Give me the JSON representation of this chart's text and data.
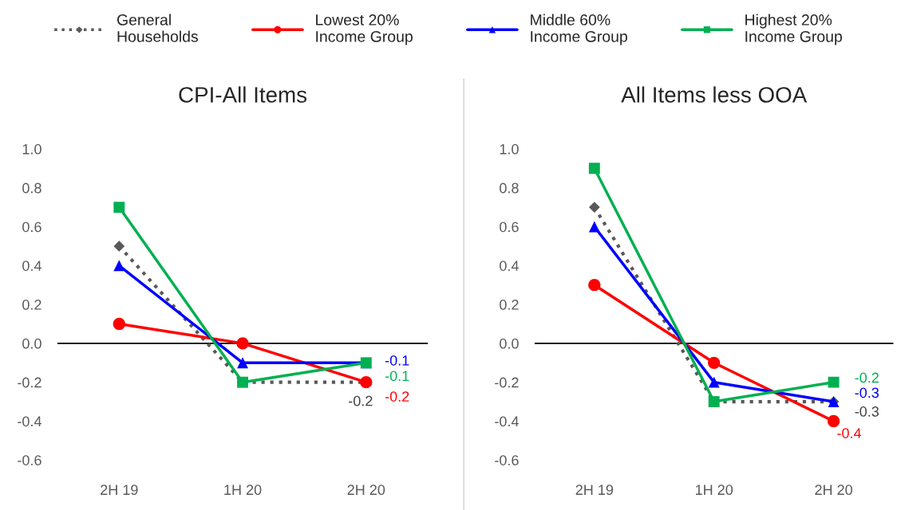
{
  "chart_data": [
    {
      "type": "line",
      "title": "CPI-All Items",
      "categories": [
        "2H 19",
        "1H 20",
        "2H 20"
      ],
      "ylim": [
        -0.6,
        1
      ],
      "yticks": [
        {
          "value": -0.6,
          "label": "-0.6"
        },
        {
          "value": -0.4,
          "label": "-0.4"
        },
        {
          "value": -0.2,
          "label": "-0.2"
        },
        {
          "value": 0,
          "label": "0.0"
        },
        {
          "value": 0.2,
          "label": "0.2"
        },
        {
          "value": 0.4,
          "label": "0.4"
        },
        {
          "value": 0.6,
          "label": "0.6"
        },
        {
          "value": 0.8,
          "label": "0.8"
        },
        {
          "value": 1,
          "label": "1.0"
        }
      ],
      "grid": false,
      "legend": "top",
      "ref_lines": [
        {
          "axis": "y",
          "value": 0,
          "color": "#000000"
        }
      ],
      "series": [
        {
          "name": "General\nHouseholds",
          "color": "#595959",
          "marker": "diamond",
          "line_style": "dotted",
          "values": [
            0.5,
            -0.2,
            -0.2
          ],
          "value_labels": [
            null,
            null,
            "-0.2"
          ]
        },
        {
          "name": "Lowest 20%\nIncome Group",
          "color": "#ff0000",
          "marker": "circle",
          "line_style": "solid",
          "values": [
            0.1,
            0,
            -0.2
          ],
          "value_labels": [
            null,
            null,
            "-0.2"
          ]
        },
        {
          "name": "Middle 60%\nIncome Group",
          "color": "#0000ff",
          "marker": "triangle",
          "line_style": "solid",
          "values": [
            0.4,
            -0.1,
            -0.1
          ],
          "value_labels": [
            null,
            null,
            "-0.1"
          ]
        },
        {
          "name": "Highest 20%\nIncome Group",
          "color": "#00b050",
          "marker": "square",
          "line_style": "solid",
          "values": [
            0.7,
            -0.2,
            -0.1
          ],
          "value_labels": [
            null,
            null,
            "-0.1"
          ]
        }
      ]
    },
    {
      "type": "line",
      "title": "All Items less OOA",
      "categories": [
        "2H 19",
        "1H 20",
        "2H 20"
      ],
      "ylim": [
        -0.6,
        1
      ],
      "yticks": [
        {
          "value": -0.6,
          "label": "-0.6"
        },
        {
          "value": -0.4,
          "label": "-0.4"
        },
        {
          "value": -0.2,
          "label": "-0.2"
        },
        {
          "value": 0,
          "label": "0.0"
        },
        {
          "value": 0.2,
          "label": "0.2"
        },
        {
          "value": 0.4,
          "label": "0.4"
        },
        {
          "value": 0.6,
          "label": "0.6"
        },
        {
          "value": 0.8,
          "label": "0.8"
        },
        {
          "value": 1,
          "label": "1.0"
        }
      ],
      "grid": false,
      "ref_lines": [
        {
          "axis": "y",
          "value": 0,
          "color": "#000000"
        }
      ],
      "series": [
        {
          "color": "#595959",
          "marker": "diamond",
          "line_style": "dotted",
          "values": [
            0.7,
            -0.3,
            -0.3
          ],
          "value_labels": [
            null,
            null,
            "-0.3"
          ]
        },
        {
          "color": "#ff0000",
          "marker": "circle",
          "line_style": "solid",
          "values": [
            0.3,
            -0.1,
            -0.4
          ],
          "value_labels": [
            null,
            null,
            "-0.4"
          ]
        },
        {
          "color": "#0000ff",
          "marker": "triangle",
          "line_style": "solid",
          "values": [
            0.6,
            -0.2,
            -0.3
          ],
          "value_labels": [
            null,
            null,
            "-0.3"
          ]
        },
        {
          "color": "#00b050",
          "marker": "square",
          "line_style": "solid",
          "values": [
            0.9,
            -0.3,
            -0.2
          ],
          "value_labels": [
            null,
            null,
            "-0.2"
          ]
        }
      ]
    }
  ]
}
